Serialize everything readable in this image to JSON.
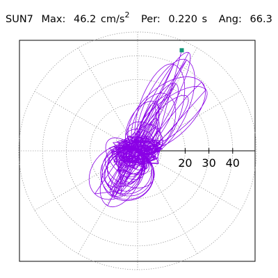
{
  "header": {
    "station": "SUN7",
    "max_label": "Max:",
    "max_value": "46.2",
    "max_unit": "cm/s",
    "max_unit_exp": "2",
    "per_label": "Per:",
    "per_value": "0.220",
    "per_unit": "s",
    "ang_label": "Ang:",
    "ang_value": "66.3"
  },
  "colors": {
    "trace": "#8a00e6",
    "marker": "#129677",
    "grid": "#8c8c8c",
    "axis": "#000000"
  },
  "chart_data": {
    "type": "polar-orbit",
    "radial_ticks": [
      20,
      30,
      40
    ],
    "rings": [
      10,
      20,
      30,
      40,
      50
    ],
    "radial_grid_style": "dotted",
    "spokes_deg": [
      0,
      30,
      60,
      90,
      120,
      150,
      180,
      210,
      240,
      270,
      300,
      330
    ],
    "max_marker": {
      "value": 46.2,
      "angle_deg": 66.3
    },
    "dominant_direction_deg": 56,
    "extent_along_major": [
      -27,
      47
    ],
    "extent_along_minor": [
      -11,
      11
    ]
  }
}
